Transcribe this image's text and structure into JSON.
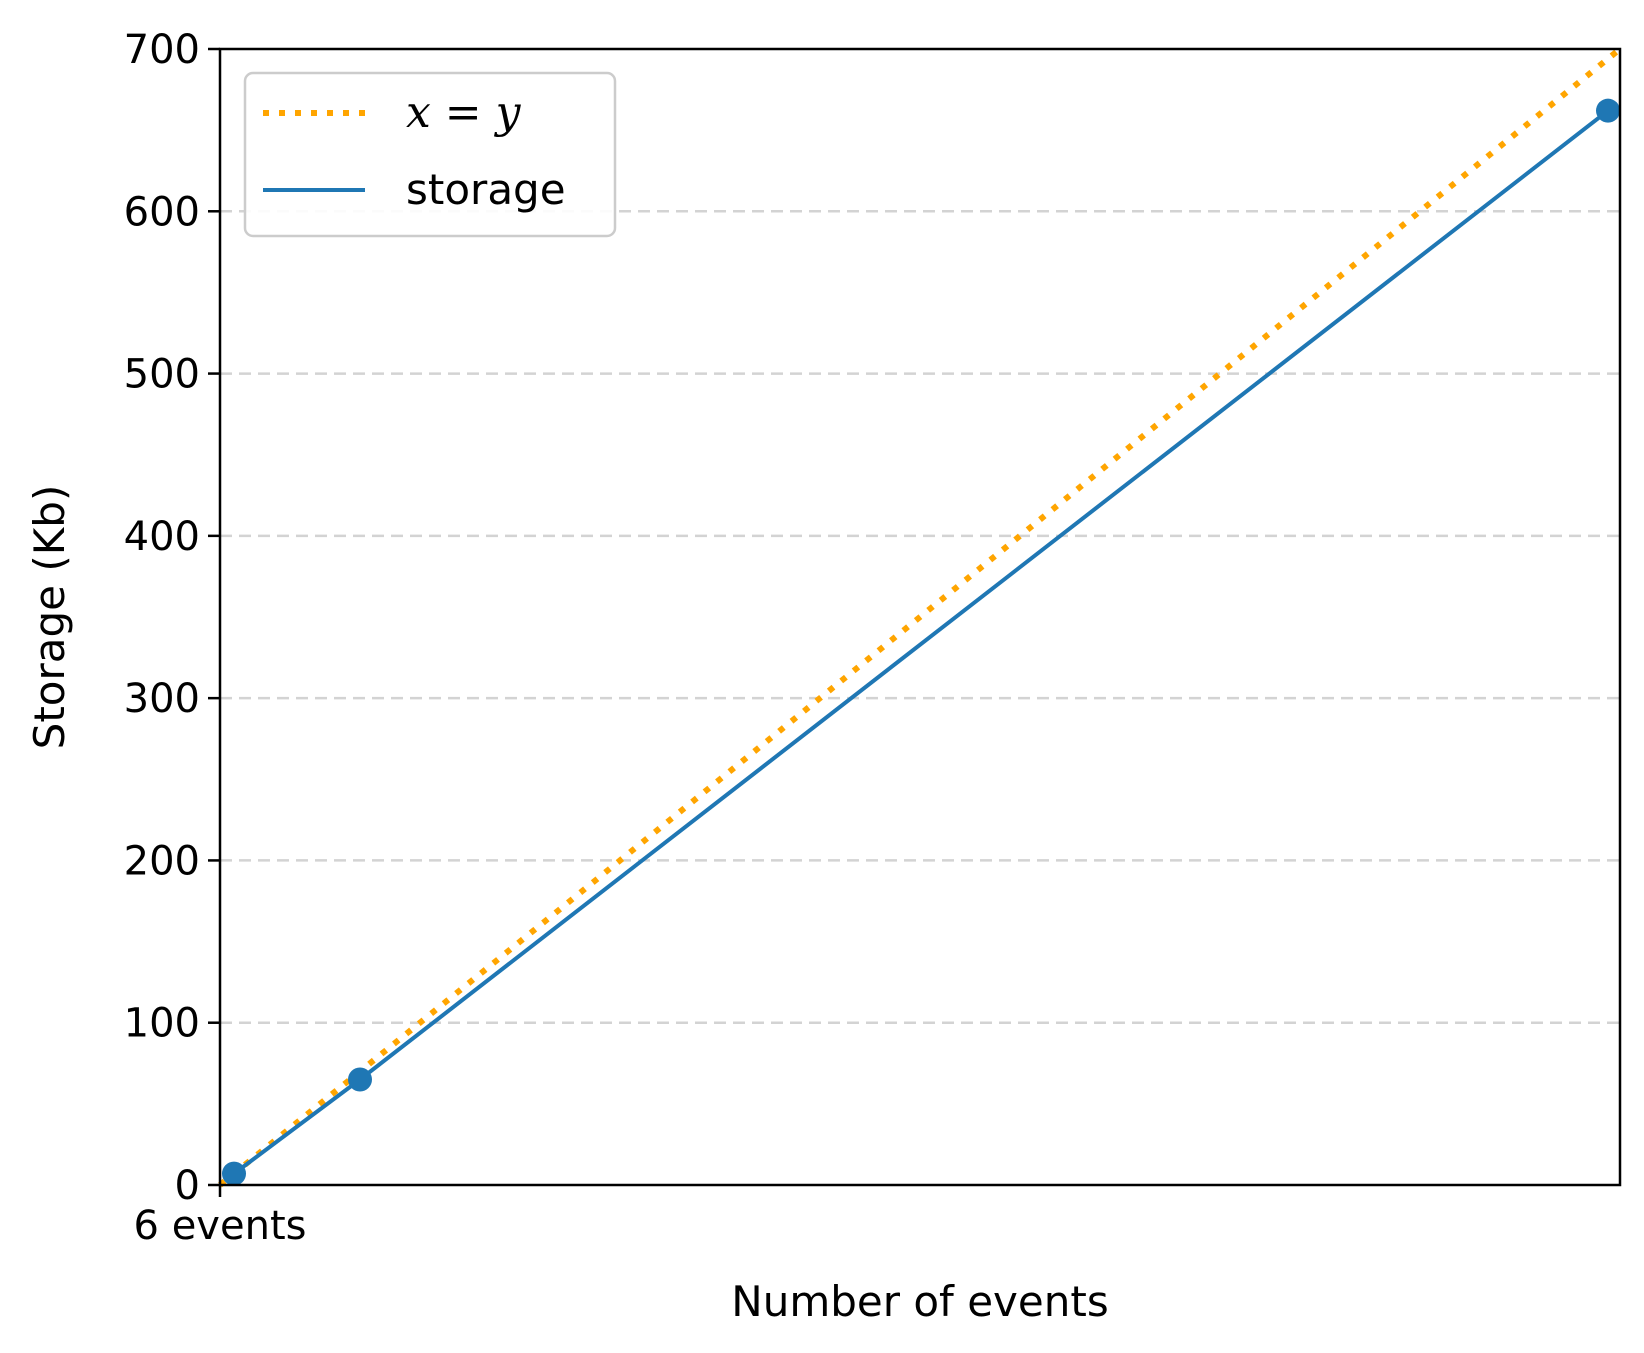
{
  "chart_data": {
    "type": "line",
    "xlabel": "Number of events",
    "ylabel": "Storage (Kb)",
    "xlim": [
      0,
      700
    ],
    "ylim": [
      0,
      700
    ],
    "x_ticks": [
      {
        "value": 0,
        "label": "6 events"
      }
    ],
    "y_ticks": [
      0,
      100,
      200,
      300,
      400,
      500,
      600,
      700
    ],
    "grid": {
      "y": true,
      "x": false,
      "style": "dashed"
    },
    "legend": {
      "position": "top-left"
    },
    "series": [
      {
        "name": "x = y",
        "style": "dotted",
        "color": "#ffa500",
        "x": [
          0,
          700
        ],
        "y": [
          0,
          700
        ]
      },
      {
        "name": "storage",
        "style": "solid",
        "markers": true,
        "color": "#1f77b4",
        "x": [
          7,
          70,
          694
        ],
        "y": [
          7,
          65,
          662
        ]
      }
    ]
  }
}
